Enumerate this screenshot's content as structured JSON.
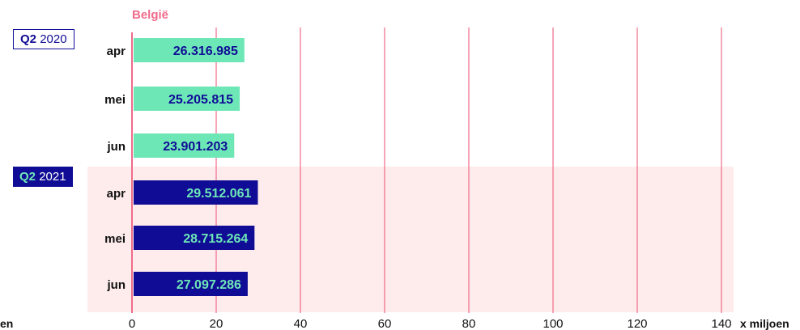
{
  "chart_data": {
    "type": "bar",
    "orientation": "horizontal",
    "title": "België",
    "xlabel": "x miljoen",
    "xlabel_left_fragment": "en",
    "xlim": [
      0,
      140
    ],
    "xticks": [
      "0",
      "20",
      "40",
      "60",
      "80",
      "100",
      "120",
      "140"
    ],
    "grid": true,
    "groups": [
      {
        "quarter": "Q2",
        "year": "2020",
        "categories": [
          "apr",
          "mei",
          "jun"
        ],
        "values": [
          26.316985,
          25.205815,
          23.901203
        ],
        "labels": [
          "26.316.985",
          "25.205.815",
          "23.901.203"
        ],
        "bar_color": "#6ee7b7",
        "label_color": "#100c95"
      },
      {
        "quarter": "Q2",
        "year": "2021",
        "categories": [
          "apr",
          "mei",
          "jun"
        ],
        "values": [
          29.512061,
          28.715264,
          27.097286
        ],
        "labels": [
          "29.512.061",
          "28.715.264",
          "27.097.286"
        ],
        "bar_color": "#100c95",
        "label_color": "#6ee7b7",
        "highlight_background": "#fdeceb"
      }
    ],
    "colors": {
      "title": "#f06b8a",
      "gridline": "#f06b8a",
      "axis_text": "#111111"
    }
  }
}
